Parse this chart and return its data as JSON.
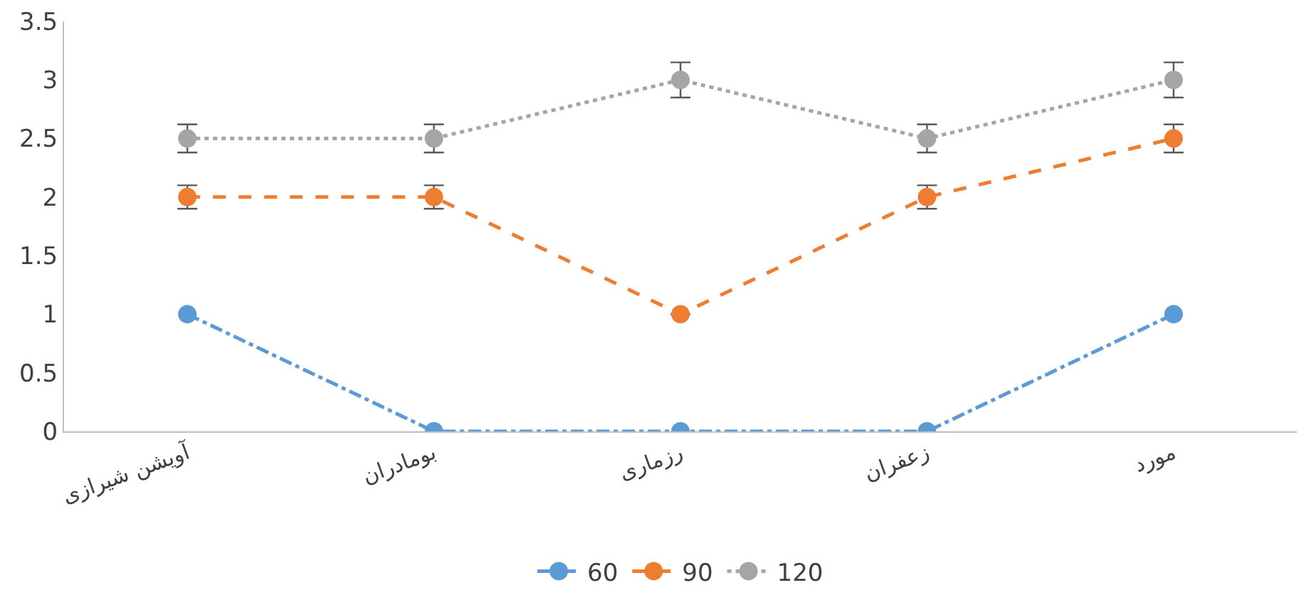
{
  "chart_data": {
    "type": "line",
    "categories": [
      "آویشن شیرازی",
      "بومادران",
      "رزماری",
      "زعفران",
      "مورد"
    ],
    "series": [
      {
        "name": "60",
        "color": "#5b9bd5",
        "line_style": "dashdot",
        "values": [
          1,
          0,
          0,
          0,
          1
        ]
      },
      {
        "name": "90",
        "color": "#ed7d31",
        "line_style": "dashed",
        "values": [
          2,
          2,
          1,
          2,
          2.5
        ],
        "errors": [
          0.1,
          0.1,
          null,
          0.1,
          0.12
        ]
      },
      {
        "name": "120",
        "color": "#a5a5a5",
        "line_style": "dotted",
        "values": [
          2.5,
          2.5,
          3,
          2.5,
          3
        ],
        "errors": [
          0.12,
          0.12,
          0.15,
          0.12,
          0.15
        ]
      }
    ],
    "ylim": [
      0,
      3.5
    ],
    "yticks": [
      0,
      0.5,
      1,
      1.5,
      2,
      2.5,
      3,
      3.5
    ],
    "legend": "bottom",
    "marker": "circle"
  }
}
